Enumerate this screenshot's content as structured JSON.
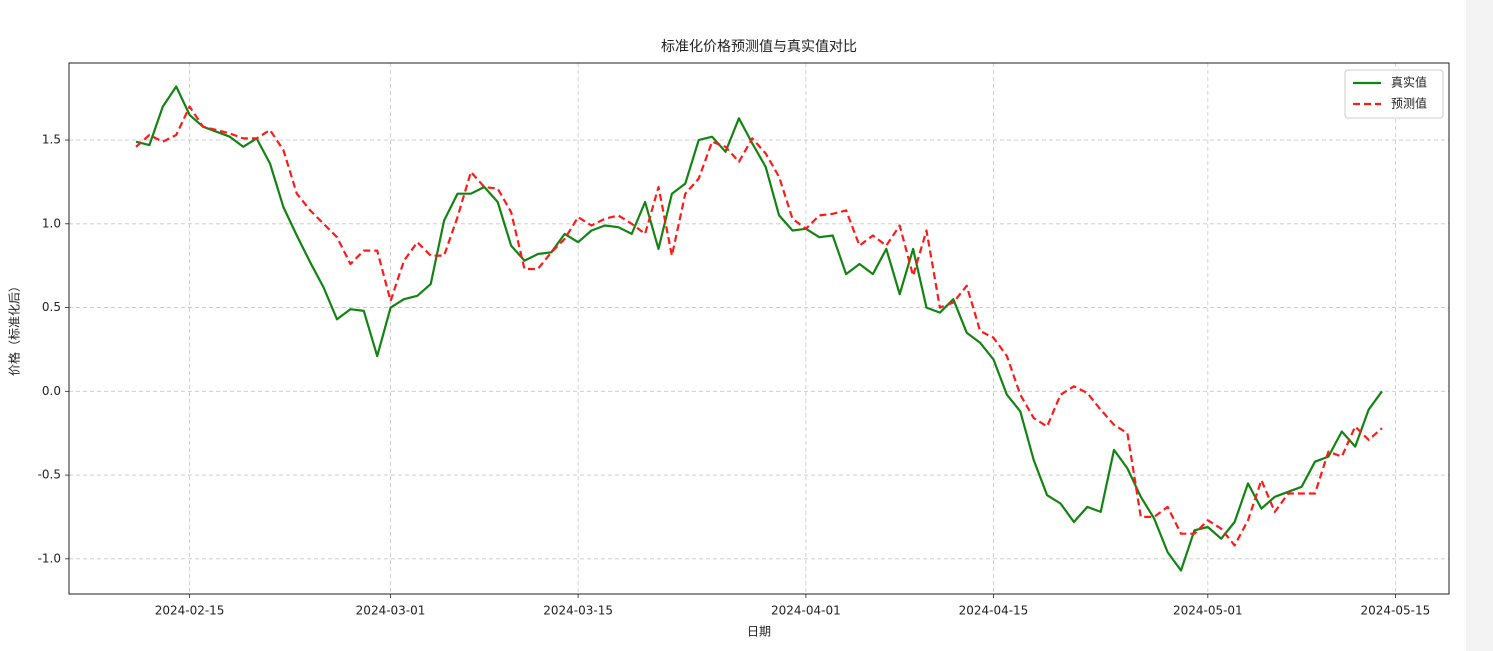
{
  "chart_data": {
    "type": "line",
    "title": "标准化价格预测值与真实值对比",
    "x_label": "日期",
    "y_label": "价格（标准化后）",
    "x": [
      "2024-02-11",
      "2024-02-12",
      "2024-02-13",
      "2024-02-14",
      "2024-02-15",
      "2024-02-16",
      "2024-02-17",
      "2024-02-18",
      "2024-02-19",
      "2024-02-20",
      "2024-02-21",
      "2024-02-22",
      "2024-02-23",
      "2024-02-24",
      "2024-02-25",
      "2024-02-26",
      "2024-02-27",
      "2024-02-28",
      "2024-02-29",
      "2024-03-01",
      "2024-03-02",
      "2024-03-03",
      "2024-03-04",
      "2024-03-05",
      "2024-03-06",
      "2024-03-07",
      "2024-03-08",
      "2024-03-09",
      "2024-03-10",
      "2024-03-11",
      "2024-03-12",
      "2024-03-13",
      "2024-03-14",
      "2024-03-15",
      "2024-03-16",
      "2024-03-17",
      "2024-03-18",
      "2024-03-19",
      "2024-03-20",
      "2024-03-21",
      "2024-03-22",
      "2024-03-23",
      "2024-03-24",
      "2024-03-25",
      "2024-03-26",
      "2024-03-27",
      "2024-03-28",
      "2024-03-29",
      "2024-03-30",
      "2024-03-31",
      "2024-04-01",
      "2024-04-02",
      "2024-04-03",
      "2024-04-04",
      "2024-04-05",
      "2024-04-06",
      "2024-04-07",
      "2024-04-08",
      "2024-04-09",
      "2024-04-10",
      "2024-04-11",
      "2024-04-12",
      "2024-04-13",
      "2024-04-14",
      "2024-04-15",
      "2024-04-16",
      "2024-04-17",
      "2024-04-18",
      "2024-04-19",
      "2024-04-20",
      "2024-04-21",
      "2024-04-22",
      "2024-04-23",
      "2024-04-24",
      "2024-04-25",
      "2024-04-26",
      "2024-04-27",
      "2024-04-28",
      "2024-04-29",
      "2024-04-30",
      "2024-05-01",
      "2024-05-02",
      "2024-05-03",
      "2024-05-04",
      "2024-05-05",
      "2024-05-06",
      "2024-05-07",
      "2024-05-08",
      "2024-05-09",
      "2024-05-10",
      "2024-05-11",
      "2024-05-12",
      "2024-05-13",
      "2024-05-14"
    ],
    "series": [
      {
        "name": "真实值",
        "color": "#138413",
        "dash": false,
        "values": [
          1.49,
          1.47,
          1.7,
          1.82,
          1.65,
          1.58,
          1.55,
          1.52,
          1.46,
          1.51,
          1.36,
          1.1,
          0.93,
          0.77,
          0.62,
          0.43,
          0.49,
          0.48,
          0.21,
          0.5,
          0.55,
          0.57,
          0.64,
          1.02,
          1.18,
          1.18,
          1.22,
          1.13,
          0.87,
          0.78,
          0.82,
          0.83,
          0.94,
          0.89,
          0.96,
          0.99,
          0.98,
          0.94,
          1.13,
          0.85,
          1.18,
          1.24,
          1.5,
          1.52,
          1.43,
          1.63,
          1.48,
          1.34,
          1.05,
          0.96,
          0.97,
          0.92,
          0.93,
          0.7,
          0.76,
          0.7,
          0.85,
          0.58,
          0.85,
          0.5,
          0.47,
          0.55,
          0.35,
          0.29,
          0.19,
          -0.02,
          -0.12,
          -0.41,
          -0.62,
          -0.67,
          -0.78,
          -0.69,
          -0.72,
          -0.35,
          -0.46,
          -0.63,
          -0.76,
          -0.96,
          -1.07,
          -0.83,
          -0.81,
          -0.88,
          -0.78,
          -0.55,
          -0.7,
          -0.63,
          -0.6,
          -0.57,
          -0.42,
          -0.39,
          -0.24,
          -0.33,
          -0.11,
          0.0
        ]
      },
      {
        "name": "预测值",
        "color": "#ff1a1a",
        "dash": true,
        "values": [
          1.46,
          1.53,
          1.49,
          1.53,
          1.7,
          1.58,
          1.56,
          1.54,
          1.51,
          1.51,
          1.56,
          1.44,
          1.18,
          1.08,
          1.0,
          0.92,
          0.76,
          0.84,
          0.84,
          0.54,
          0.78,
          0.89,
          0.81,
          0.81,
          1.04,
          1.31,
          1.22,
          1.21,
          1.07,
          0.73,
          0.73,
          0.83,
          0.91,
          1.04,
          0.99,
          1.03,
          1.05,
          1.0,
          0.94,
          1.22,
          0.81,
          1.18,
          1.27,
          1.49,
          1.46,
          1.37,
          1.51,
          1.42,
          1.28,
          1.03,
          0.97,
          1.05,
          1.06,
          1.08,
          0.87,
          0.93,
          0.87,
          0.99,
          0.69,
          0.96,
          0.5,
          0.53,
          0.63,
          0.36,
          0.32,
          0.21,
          -0.02,
          -0.16,
          -0.21,
          -0.02,
          0.03,
          -0.01,
          -0.11,
          -0.2,
          -0.25,
          -0.75,
          -0.75,
          -0.69,
          -0.85,
          -0.85,
          -0.77,
          -0.82,
          -0.92,
          -0.77,
          -0.53,
          -0.72,
          -0.61,
          -0.61,
          -0.61,
          -0.36,
          -0.39,
          -0.21,
          -0.29,
          -0.22
        ]
      }
    ],
    "xlim": [
      "2024-02-06",
      "2024-05-19"
    ],
    "xticks": [
      "2024-02-15",
      "2024-03-01",
      "2024-03-15",
      "2024-04-01",
      "2024-04-15",
      "2024-05-01",
      "2024-05-15"
    ],
    "ylim": [
      -1.21,
      1.96
    ],
    "yticks": [
      {
        "value": -1,
        "label": "-1.0"
      },
      -0.5,
      {
        "value": 0,
        "label": "0.0"
      },
      0.5,
      {
        "value": 1,
        "label": "1.0"
      },
      1.5
    ],
    "grid": true,
    "legend": "upper right"
  }
}
